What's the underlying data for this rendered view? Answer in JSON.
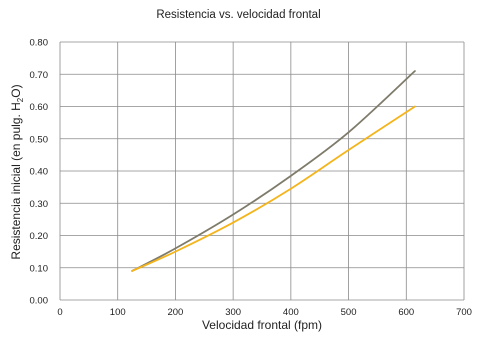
{
  "chart_data": {
    "type": "line",
    "title": "Resistencia vs. velocidad frontal",
    "xlabel": "Velocidad frontal (fpm)",
    "ylabel": {
      "pre": "Resistencia inicial (en pulg. H",
      "sub": "2",
      "post": "O)"
    },
    "xlim": [
      0,
      700
    ],
    "ylim": [
      0,
      0.8
    ],
    "xticks": [
      "0",
      "100",
      "200",
      "300",
      "400",
      "500",
      "600",
      "700"
    ],
    "yticks": [
      "0.00",
      "0.10",
      "0.20",
      "0.30",
      "0.40",
      "0.50",
      "0.60",
      "0.70",
      "0.80"
    ],
    "grid": true,
    "series": [
      {
        "color": "#7f7b6b",
        "x": [
          125,
          200,
          300,
          400,
          500,
          615
        ],
        "y": [
          0.09,
          0.16,
          0.265,
          0.385,
          0.52,
          0.71
        ]
      },
      {
        "color": "#f4b41b",
        "x": [
          125,
          200,
          300,
          400,
          500,
          615
        ],
        "y": [
          0.09,
          0.15,
          0.24,
          0.345,
          0.465,
          0.6
        ]
      }
    ]
  }
}
